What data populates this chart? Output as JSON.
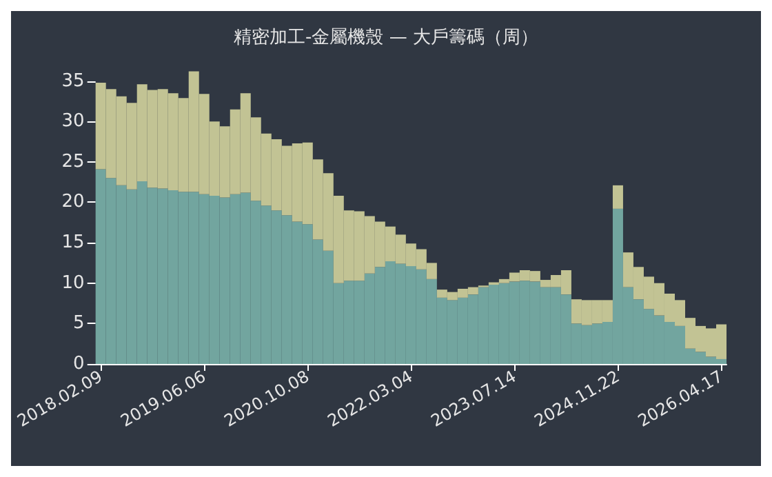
{
  "chart_data": {
    "type": "bar",
    "title": "精密加工-金屬機殼 — 大戶籌碼（周）",
    "stacked": true,
    "categories": [
      "2018.02.09",
      null,
      null,
      null,
      null,
      null,
      null,
      null,
      null,
      null,
      "2019.06.06",
      null,
      null,
      null,
      null,
      null,
      null,
      null,
      null,
      null,
      "2020.10.08",
      null,
      null,
      null,
      null,
      null,
      null,
      null,
      null,
      null,
      "2022.03.04",
      null,
      null,
      null,
      null,
      null,
      null,
      null,
      null,
      null,
      "2023.07.14",
      null,
      null,
      null,
      null,
      null,
      null,
      null,
      null,
      null,
      "2024.11.22",
      null,
      null,
      null,
      null,
      null,
      null,
      null,
      null,
      null,
      "2026.04.17"
    ],
    "series": [
      {
        "color": "#72a59f",
        "values": [
          24.1,
          23.0,
          22.1,
          21.6,
          22.6,
          21.8,
          21.7,
          21.5,
          21.3,
          21.3,
          21.0,
          20.8,
          20.6,
          21.0,
          21.2,
          20.2,
          19.6,
          19.0,
          18.4,
          17.6,
          17.3,
          15.4,
          14.0,
          10.0,
          10.3,
          10.3,
          11.2,
          12.0,
          12.7,
          12.4,
          12.1,
          11.7,
          10.5,
          8.2,
          7.9,
          8.2,
          8.6,
          9.5,
          9.8,
          10.0,
          10.2,
          10.3,
          10.2,
          9.5,
          9.5,
          8.6,
          5.0,
          4.8,
          5.0,
          5.2,
          19.2,
          9.5,
          8.0,
          6.8,
          6.0,
          5.2,
          4.7,
          1.9,
          1.5,
          0.9,
          0.6
        ]
      },
      {
        "color": "#c2c394",
        "values": [
          10.7,
          11.0,
          11.0,
          10.7,
          12.0,
          12.1,
          12.3,
          12.0,
          11.6,
          14.9,
          12.4,
          9.2,
          8.8,
          10.5,
          12.3,
          10.3,
          8.9,
          8.8,
          8.6,
          9.7,
          10.1,
          9.9,
          9.6,
          10.8,
          8.7,
          8.6,
          7.1,
          5.6,
          4.3,
          3.6,
          2.8,
          2.5,
          2.0,
          1.0,
          1.0,
          1.1,
          0.9,
          0.2,
          0.3,
          0.5,
          1.1,
          1.3,
          1.3,
          0.9,
          1.5,
          3.0,
          3.0,
          3.1,
          2.9,
          2.7,
          2.9,
          4.3,
          4.0,
          4.0,
          4.0,
          3.5,
          3.2,
          3.8,
          3.2,
          3.5,
          4.3
        ]
      }
    ],
    "ylim": [
      0,
      36.5
    ],
    "yticks": [
      0,
      5,
      10,
      15,
      20,
      25,
      30,
      35
    ],
    "grid": false
  }
}
